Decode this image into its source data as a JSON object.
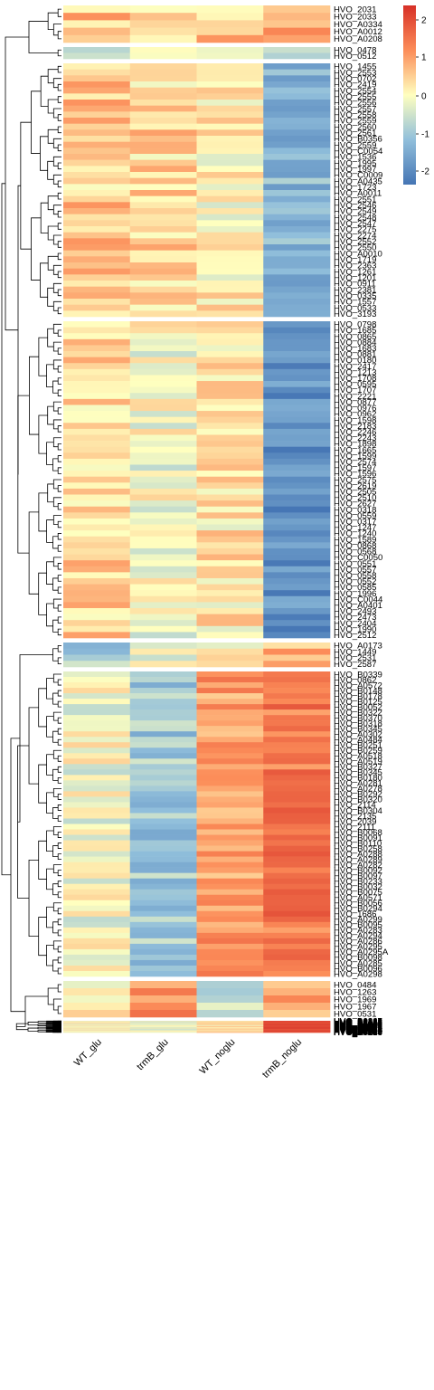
{
  "chart_data": {
    "type": "heatmap",
    "columns": [
      "WT_glu",
      "trmB_glu",
      "WT_noglu",
      "trmB_noglu"
    ],
    "row_label_groups": [
      [
        "HVO_2031",
        "HVO_2033",
        "HVO_A0334",
        "HVO_A0012",
        "HVO_A0208"
      ],
      [
        "HVO_0478",
        "HVO_0512"
      ],
      [
        "HVO_1455",
        "HVO_2553",
        "HVO_0702",
        "HVO_2419",
        "HVO_2554",
        "HVO_2555",
        "HVO_2556",
        "HVO_2557",
        "HVO_2558",
        "HVO_2559",
        "HVO_2560",
        "HVO_2561",
        "HVO_B0356",
        "HVO_2559",
        "HVO_C0054",
        "HVO_1536",
        "HVO_1995",
        "HVO_1997",
        "HVO_C0009",
        "HVO_A0435",
        "HVO_1723",
        "HVO_A0011",
        "HVO_2551",
        "HVO_2546",
        "HVO_2549",
        "HVO_2548",
        "HVO_2547",
        "HVO_2275",
        "HVO_2274",
        "HVO_2552",
        "HVO_2550",
        "HVO_A0010",
        "HVO_1719",
        "HVO_2363",
        "HVO_1261",
        "HVO_1201",
        "HVO_0911",
        "HVO_2381",
        "HVO_0335",
        "HVO_1557",
        "HVO_0533",
        "HVO_3193"
      ],
      [
        "HVO_0798",
        "HVO_1685",
        "HVO_0865",
        "HVO_0884",
        "HVO_1683",
        "HVO_0881",
        "HVO_0180",
        "HVO_2417",
        "HVO_1213",
        "HVO_1708",
        "HVO_0595",
        "HVO_1707",
        "HVO_2221",
        "HVO_0877",
        "HVO_0976",
        "HVO_0962",
        "HVO_1598",
        "HVO_2183",
        "HVO_2246",
        "HVO_2243",
        "HVO_1898",
        "HVO_1665",
        "HVO_1599",
        "HVO_2574",
        "HVO_1597",
        "HVO_1596",
        "HVO_2575",
        "HVO_2619",
        "HVO_2505",
        "HVO_2510",
        "HVO_2627",
        "HVO_0318",
        "HVO_0559",
        "HVO_0317",
        "HVO_1247",
        "HVO_1240",
        "HVO_1589",
        "HVO_0868",
        "HVO_0568",
        "HVO_C0050",
        "HVO_0551",
        "HVO_0557",
        "HVO_0558",
        "HVO_0552",
        "HVO_0585",
        "HVO_1996",
        "HVO_C0044",
        "HVO_A0401",
        "HVO_2493",
        "HVO_2473",
        "HVO_2404",
        "HVO_1990",
        "HVO_2512"
      ],
      [
        "HVO_A0173",
        "HVO_1449",
        "HVO_2531",
        "HVO_2587"
      ],
      [
        "HVO_B0339",
        "HVO_0862",
        "HVO_A0572",
        "HVO_B0148",
        "HVO_B0178",
        "HVO_B0125",
        "HVO_B0052",
        "HVO_B0322",
        "HVO_B0370",
        "HVO_B0318",
        "HVO_B0345",
        "HVO_A0302",
        "HVO_A0484",
        "HVO_B0251",
        "HVO_B0259",
        "HVO_A0518",
        "HVO_A0519",
        "HVO_B0327",
        "HVO_B0345",
        "HVO_B0180",
        "HVO_A0281",
        "HVO_A0278",
        "HVO_B0292",
        "HVO_B0320",
        "HVO_2114",
        "HVO_B0304",
        "HVO_2135",
        "HVO_2039",
        "HVO_2111",
        "HVO_B0068",
        "HVO_B0091",
        "HVO_B0110",
        "HVO_B0258",
        "HVO_A0288",
        "HVO_A0289",
        "HVO_A0282",
        "HVO_B0092",
        "HVO_B0097",
        "HVO_B0233",
        "HVO_B0032",
        "HVO_B0075",
        "HVO_A0571",
        "HVO_B0056",
        "HVO_B0294",
        "HVO_1686",
        "HVO_A0299",
        "HVO_B0095",
        "HVO_A0283",
        "HVO_A0294",
        "HVO_A0286",
        "HVO_A0295",
        "HVO_A0295A",
        "HVO_B0098",
        "HVO_A0285",
        "HVO_B0096",
        "HVO_A0298"
      ],
      [
        "HVO_0484",
        "HVO_1263",
        "HVO_1969",
        "HVO_1967",
        "HVO_0531"
      ],
      [
        "HVO_B0326",
        "HVO_A0347",
        "HVO_B0514",
        "HVO_B0213",
        "HVO_B0247",
        "HVO_B0422",
        "HVO_B0423",
        "HVO_B0348",
        "HVO_B0364",
        "HVO_B0081",
        "HVO_B0041",
        "HVO_B0007",
        "HVO_B0173",
        "HVO_A0334",
        "HVO_B0315",
        "HVO_B0328",
        "HVO_B0330",
        "HVO_B0028",
        "HVO_B0029",
        "HVO_B0058",
        "HVO_B0102",
        "HVO_A0279",
        "HVO_A0307",
        "HVO_B0104",
        "HVO_B0105",
        "HVO_B0290",
        "HVO_A0289",
        "HVO_1028",
        "HVO_0327",
        "HVO_A0339",
        "HVO_A0140",
        "HVO_B0151",
        "HVO_B0082",
        "HVO_0782",
        "HVO_0289",
        "HVO_1083",
        "HVO_0384",
        "HVO_B0078",
        "HVO_2106",
        "HVO_1658",
        "HVO_B0223",
        "HVO_B0226",
        "HVO_B0225",
        "HVO_2101",
        "HVO_B0033",
        "HVO_2139",
        "HVO_B0240",
        "HVO_B0034",
        "HVO_A0603",
        "HVO_C0078",
        "HVO_B0357",
        "HVO_1097",
        "HVO_0292",
        "HVO_A0308",
        "HVO_2893",
        "HVO_B0233",
        "HVO_A0087",
        "HVO_A0268",
        "HVO_B0269",
        "HVO_2128",
        "HVO_B0234",
        "HVO_A0264",
        "HVO_B0125"
      ]
    ],
    "legend": {
      "position": "top-right",
      "ticks": [
        "2",
        "1",
        "0",
        "-1",
        "-2"
      ],
      "colors": [
        "#4575b4",
        "#91bfdb",
        "#ffffbf",
        "#fc8d59",
        "#d73027"
      ]
    },
    "dendrogram": "rows"
  }
}
